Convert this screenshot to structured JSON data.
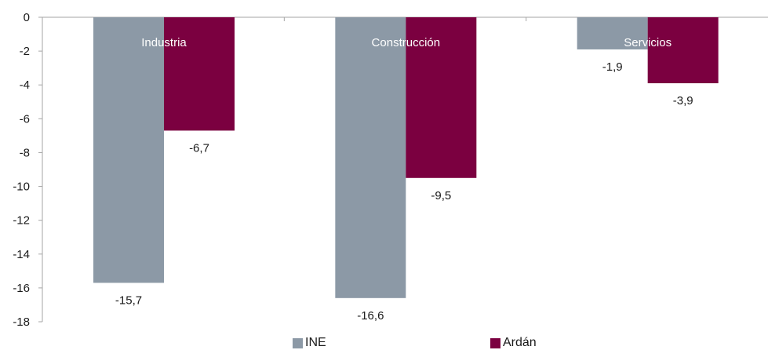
{
  "chart_data": {
    "type": "bar",
    "categories": [
      "Industria",
      "Construcción",
      "Servicios"
    ],
    "series": [
      {
        "name": "INE",
        "values": [
          -15.7,
          -16.6,
          -1.9
        ],
        "labels": [
          "-15,7",
          "-16,6",
          "-1,9"
        ],
        "color": "#8c99a6"
      },
      {
        "name": "Ardán",
        "values": [
          -6.7,
          -9.5,
          -3.9
        ],
        "labels": [
          "-6,7",
          "-9,5",
          "-3,9"
        ],
        "color": "#7b0040"
      }
    ],
    "yticks": [
      0,
      -2,
      -4,
      -6,
      -8,
      -10,
      -12,
      -14,
      -16,
      -18
    ],
    "ylim": [
      -18,
      0
    ],
    "grid": false,
    "legend": "bottom",
    "title": "",
    "xlabel": "",
    "ylabel": ""
  }
}
